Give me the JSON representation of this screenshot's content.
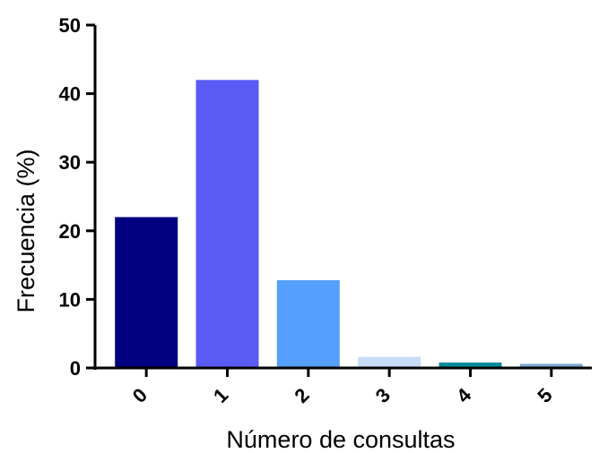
{
  "chart_data": {
    "type": "bar",
    "categories": [
      "0",
      "1",
      "2",
      "3",
      "4",
      "5"
    ],
    "values": [
      22,
      42,
      12.8,
      1.6,
      0.8,
      0.6
    ],
    "colors": [
      "#000080",
      "#5a5af5",
      "#55a0ff",
      "#c8dcf8",
      "#008b9b",
      "#7aa8d0"
    ],
    "title": "",
    "xlabel": "Número de consultas",
    "ylabel": "Frecuencia (%)",
    "ylim": [
      0,
      50
    ],
    "yticks": [
      0,
      10,
      20,
      30,
      40,
      50
    ],
    "grid": false
  }
}
